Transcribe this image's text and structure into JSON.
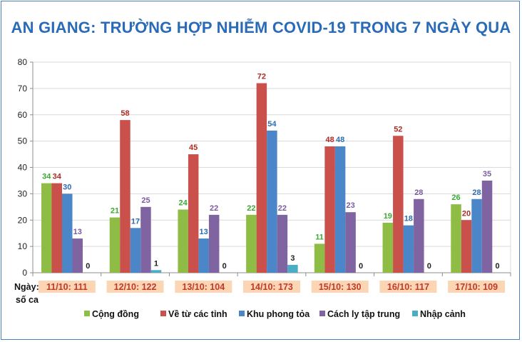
{
  "chart_data": {
    "type": "bar",
    "title": "AN GIANG: TRƯỜNG HỢP NHIỄM COVID-19 TRONG 7 NGÀY QUA",
    "xlabel_lines": [
      "Ngày:",
      "số ca"
    ],
    "ylabel": "",
    "ylim": [
      0,
      80
    ],
    "yticks": [
      0,
      10,
      20,
      30,
      40,
      50,
      60,
      70,
      80
    ],
    "grid": true,
    "legend_position": "bottom",
    "categories": [
      "11/10: 111",
      "12/10: 122",
      "13/10: 104",
      "14/10: 173",
      "15/10: 130",
      "16/10: 117",
      "17/10: 109"
    ],
    "series": [
      {
        "name": "Cộng đồng",
        "color": "#8fbc45",
        "label_color": "#3aaa35",
        "values": [
          34,
          21,
          24,
          22,
          11,
          19,
          26
        ]
      },
      {
        "name": "Về từ các tỉnh",
        "color": "#c9504b",
        "label_color": "#b02a24",
        "values": [
          34,
          58,
          45,
          72,
          48,
          52,
          20
        ]
      },
      {
        "name": "Khu phong tỏa",
        "color": "#4a86c8",
        "label_color": "#2d6db0",
        "values": [
          30,
          17,
          13,
          54,
          48,
          18,
          28
        ]
      },
      {
        "name": "Cách ly tập trung",
        "color": "#8064a2",
        "label_color": "#7a5ba0",
        "values": [
          13,
          25,
          22,
          22,
          23,
          28,
          35
        ]
      },
      {
        "name": "Nhập cảnh",
        "color": "#4bacc6",
        "label_color": "#222222",
        "values": [
          0,
          1,
          0,
          3,
          0,
          0,
          0
        ]
      }
    ],
    "colors": {
      "frame": "#4a7fc1",
      "title": "#2a6bb8",
      "grid": "#d9d9d9",
      "axis": "#8c8c8c",
      "category_bg": "#fcd5b4",
      "category_text": "#c0392b"
    }
  }
}
